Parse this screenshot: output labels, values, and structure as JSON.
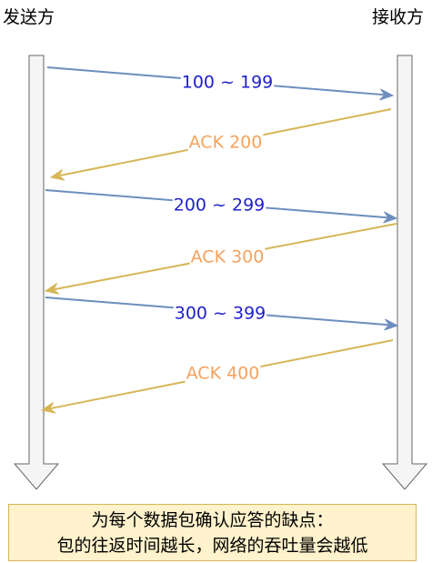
{
  "sender": "发送方",
  "receiver": "接收方",
  "messages": [
    {
      "label": "100 ~ 199",
      "direction": "to-receiver"
    },
    {
      "label": "ACK 200",
      "direction": "to-sender"
    },
    {
      "label": "200 ~ 299",
      "direction": "to-receiver"
    },
    {
      "label": "ACK 300",
      "direction": "to-sender"
    },
    {
      "label": "300 ~ 399",
      "direction": "to-receiver"
    },
    {
      "label": "ACK 400",
      "direction": "to-sender"
    }
  ],
  "caption": {
    "line1": "为每个数据包确认应答的缺点：",
    "line2": "包的往返时间越长，网络的吞吐量会越低"
  },
  "colors": {
    "data_arrow": "#6c8ebf",
    "data_text": "#1f1fcc",
    "ack_arrow": "#d6b656",
    "ack_text": "#f5a25d",
    "timeline_fill": "#f5f5f5",
    "timeline_stroke": "#666666",
    "caption_fill": "#fff2cc",
    "caption_stroke": "#d6b656"
  }
}
